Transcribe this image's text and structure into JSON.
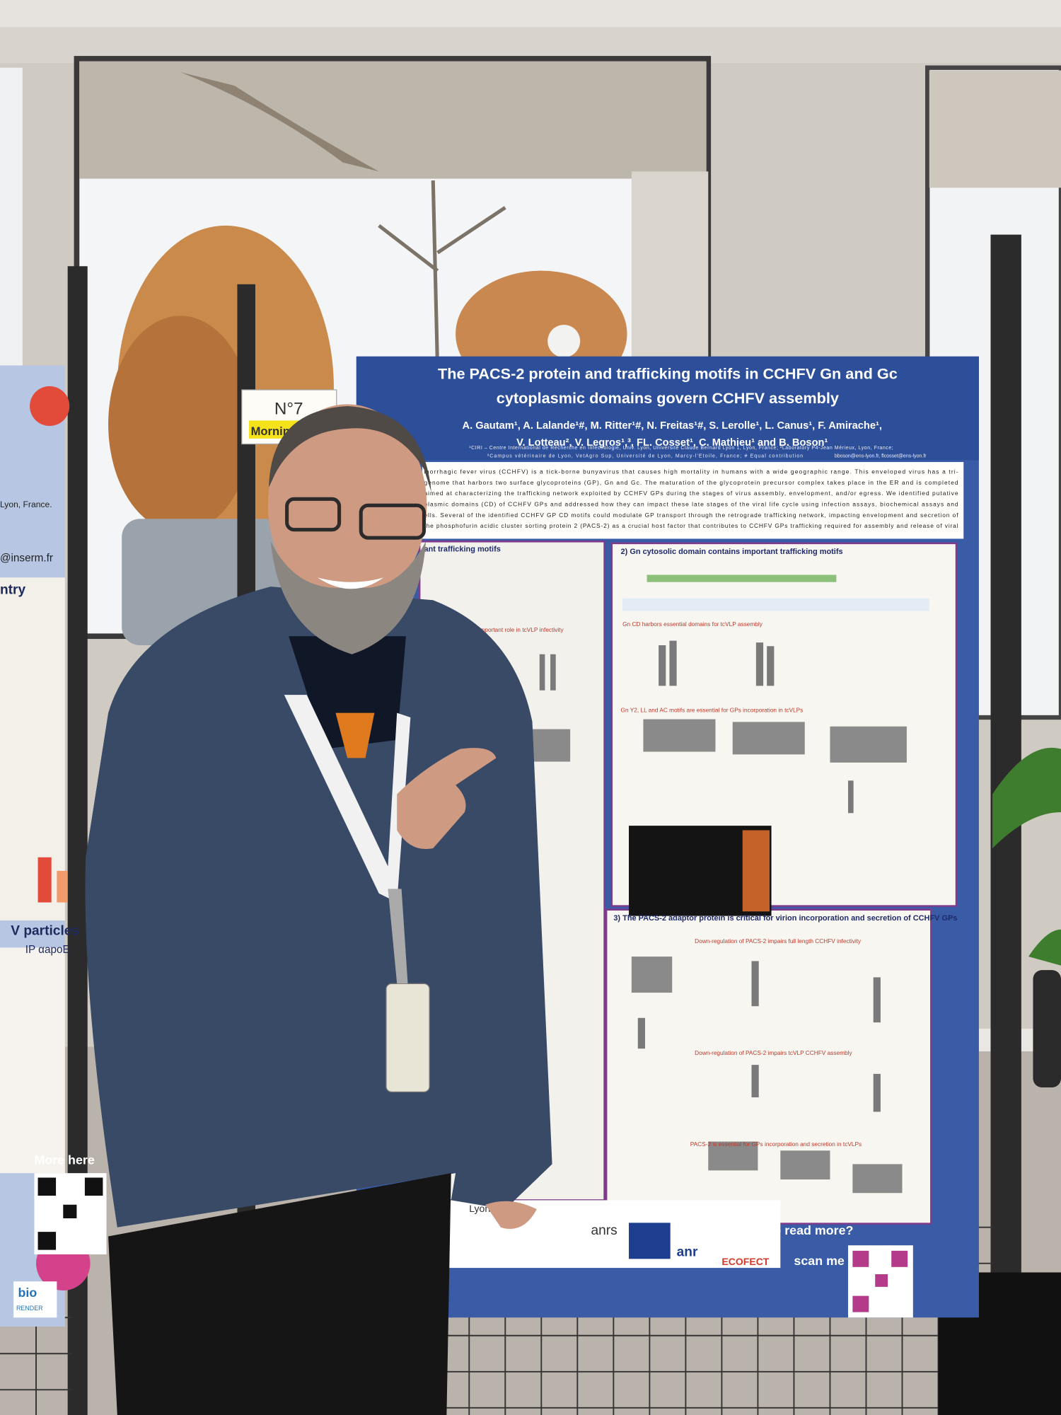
{
  "poster": {
    "title": [
      "The PACS-2 protein and trafficking motifs in CCHFV Gn and Gc",
      "cytoplasmic domains govern CCHFV assembly"
    ],
    "authors": [
      "A. Gautam¹, A. Lalande¹#, M. Ritter¹#, N. Freitas¹#, S. Lerolle¹, L. Canus¹, F. Amirache¹,",
      "V. Lotteau², V. Legros¹,³, FL. Cosset¹, C. Mathieu¹ and B. Boson¹"
    ],
    "affiliations": [
      "¹CIRI – Centre International de Recherche en Infectiologie, Univ. Lyon, Université Claude Bernard Lyon 1, Lyon, France; ²Laboratory P4-Jean Mérieux, Lyon, France;",
      "³Campus vétérinaire de Lyon, VetAgro Sup, Université de Lyon, Marcy-l'Etoile, France; # Equal contribution"
    ],
    "email": "bboson@ens-lyon.fr, flcosset@ens-lyon.fr",
    "intro": [
      "morrhagic fever virus (CCHFV) is a tick-borne bunyavirus that causes high mortality in humans with a wide geographic range. This enveloped virus has a tri-",
      "genome that harbors two surface glycoproteins (GP), Gn and Gc. The maturation of the glycoprotein precursor complex takes place in the ER and is completed",
      "aimed at characterizing the trafficking network exploited by CCHFV GPs during the stages of virus assembly, envelopment, and/or egress. We identified putative",
      "plasmic domains (CD) of CCHFV GPs and addressed how they can impact these late stages of the viral life cycle using infection assays, biochemical assays and",
      "ells. Several of the identified CCHFV GP CD motifs could modulate GP transport through the retrograde trafficking network, impacting envelopment and secretion of",
      "the phosphofurin acidic cluster sorting protein 2 (PACS-2) as a crucial host factor that contributes to CCHFV GPs trafficking required for assembly and release of viral"
    ],
    "sections": [
      "ant trafficking motifs",
      "2) Gn cytosolic domain contains important trafficking motifs",
      "3) The PACS-2 adaptor protein is critical for virion incorporation and secretion of CCHFV GPs"
    ],
    "subheadings": [
      "Gc CT domains play important role in tcVLP infectivity",
      "Gn CD  harbors essential domains for tcVLP assembly",
      "Gn Y2, LL and AC motifs are essential for GPs incorporation in tcVLPs",
      "Down-regulation of PACS-2 impairs full length CCHFV infectivity",
      "Down-regulation of PACS-2 impairs tcVLP CCHFV assembly",
      "PACS-2 is essential for GPs incorporation and secretion in tcVLPs"
    ],
    "footer": [
      "Want to read more?",
      "scan me"
    ],
    "logos": [
      "Lyon",
      "anrs",
      "anr",
      "ECOFECT"
    ]
  },
  "label": {
    "number": "N°7",
    "session": "Morning"
  },
  "left_poster": [
    "Lyon, France.",
    "@inserm.fr",
    "ntry",
    "V particles",
    "IP αapoE",
    "More here",
    "bio",
    "RENDER"
  ]
}
